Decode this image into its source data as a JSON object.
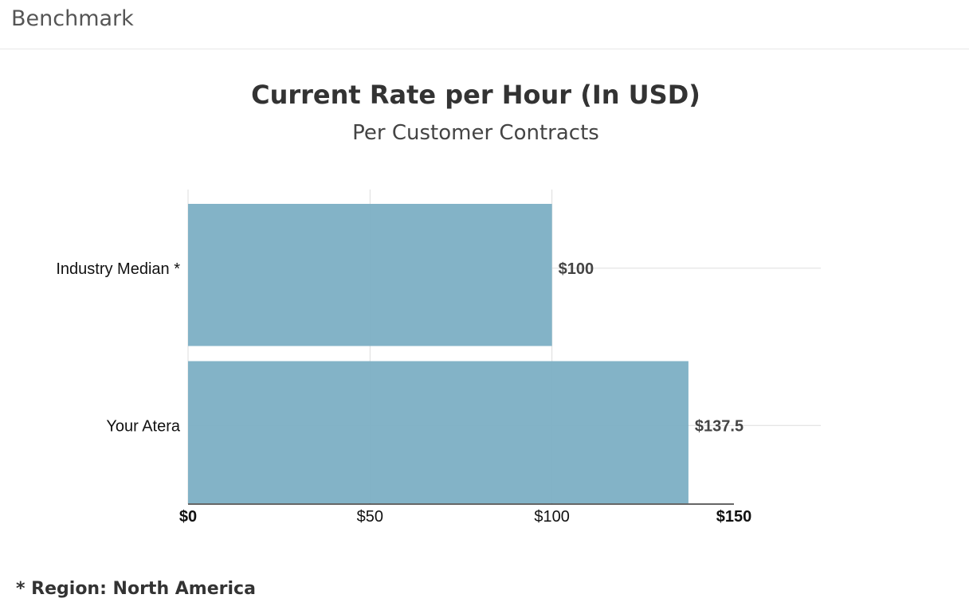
{
  "header": {
    "title": "Benchmark"
  },
  "chart_data": {
    "type": "bar",
    "orientation": "horizontal",
    "title": "Current Rate per Hour (In USD)",
    "subtitle": "Per Customer Contracts",
    "categories": [
      "Industry Median *",
      "Your Atera"
    ],
    "values": [
      100,
      137.5
    ],
    "value_labels": [
      "$100",
      "$137.5"
    ],
    "xlim": [
      0,
      150
    ],
    "x_ticks": [
      {
        "value": 0,
        "label": "$0"
      },
      {
        "value": 50,
        "label": "$50"
      },
      {
        "value": 100,
        "label": "$100"
      },
      {
        "value": 150,
        "label": "$150"
      }
    ],
    "grid": true,
    "bar_color": "#7fb1c5"
  },
  "footnote": "* Region: North America"
}
